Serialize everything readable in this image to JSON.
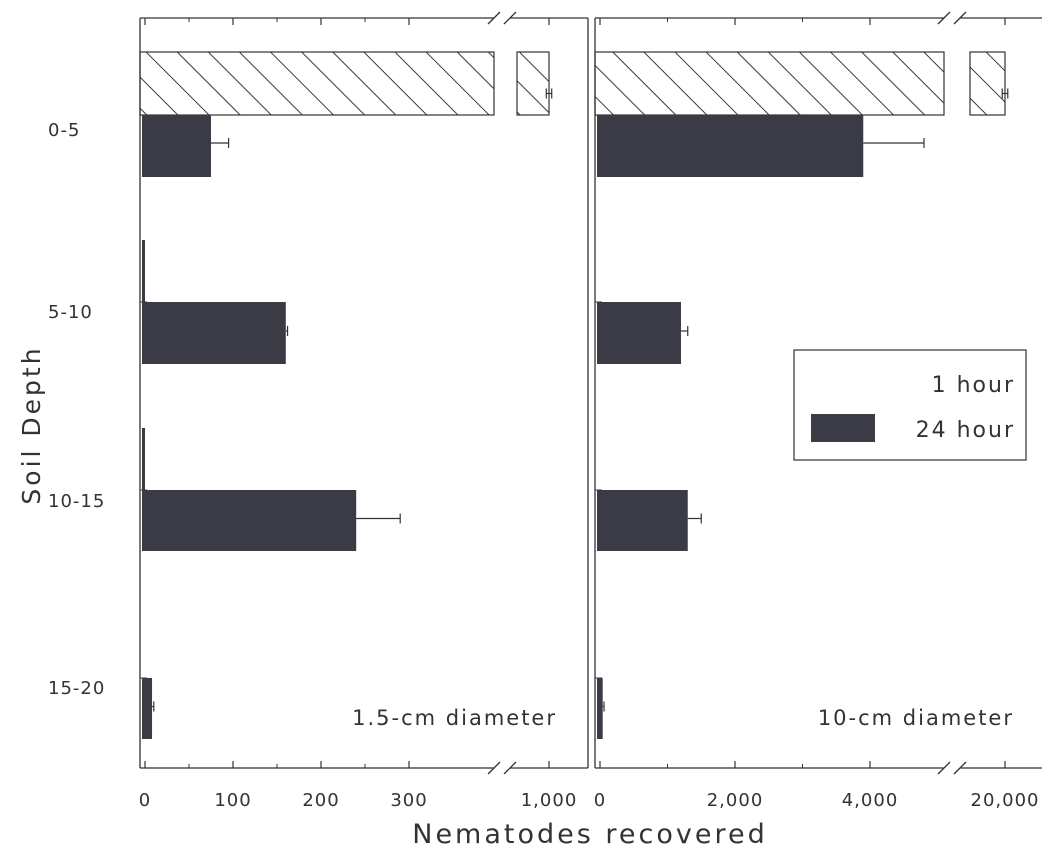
{
  "chart_data": {
    "type": "bar",
    "orientation": "horizontal",
    "ylabel": "Soil Depth",
    "xlabel": "Nematodes recovered",
    "categories": [
      "0-5",
      "5-10",
      "10-15",
      "15-20"
    ],
    "legend": {
      "placement": "right-middle",
      "entries": [
        {
          "label": "1 hour",
          "pattern": "hatched"
        },
        {
          "label": "24 hour",
          "pattern": "solid"
        }
      ]
    },
    "colors": {
      "bar": "#3a3b44",
      "line": "#333333",
      "hatch": "#3a3a3a",
      "paper": "#ffffff"
    },
    "panels": [
      {
        "annotation": "1.5-cm diameter",
        "ticks_low": [
          0,
          100,
          200,
          300
        ],
        "tick_labels_low": [
          "0",
          "100",
          "200",
          "300"
        ],
        "ticks_high": [
          1000
        ],
        "tick_labels_high": [
          "1,000"
        ],
        "axis_break": true,
        "series": [
          {
            "name": "1 hour",
            "values": [
              1000,
              2,
              2,
              0
            ],
            "errors": [
              80,
              0,
              0,
              0
            ]
          },
          {
            "name": "24 hour",
            "values": [
              75,
              160,
              240,
              8
            ],
            "errors": [
              20,
              2,
              50,
              2
            ]
          }
        ]
      },
      {
        "annotation": "10-cm diameter",
        "ticks_low": [
          0,
          2000,
          4000
        ],
        "tick_labels_low": [
          "0",
          "2,000",
          "4,000"
        ],
        "ticks_high": [
          20000
        ],
        "tick_labels_high": [
          "20,000"
        ],
        "axis_break": true,
        "series": [
          {
            "name": "1 hour",
            "values": [
              20000,
              0,
              0,
              0
            ],
            "errors": [
              1500,
              0,
              0,
              0
            ]
          },
          {
            "name": "24 hour",
            "values": [
              3900,
              1200,
              1300,
              40
            ],
            "errors": [
              900,
              100,
              200,
              20
            ]
          }
        ]
      }
    ]
  }
}
